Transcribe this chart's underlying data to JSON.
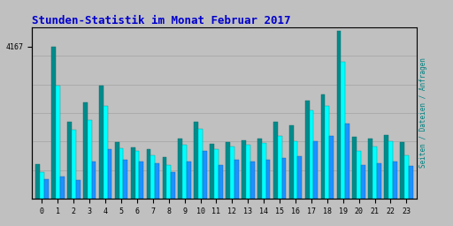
{
  "title": "Stunden-Statistik im Monat Februar 2017",
  "title_color": "#0000CC",
  "title_fontsize": 9,
  "ylabel_right": "Seiten / Dateien / Anfragen",
  "ylabel_right_color": "#008080",
  "background_color": "#C0C0C0",
  "plot_bg_color": "#C0C0C0",
  "bar_width": 0.27,
  "ylim_max": 4700,
  "ytick_label": "4167",
  "ytick_value": 4167,
  "hours": [
    0,
    1,
    2,
    3,
    4,
    5,
    6,
    7,
    8,
    9,
    10,
    11,
    12,
    13,
    14,
    15,
    16,
    17,
    18,
    19,
    20,
    21,
    22,
    23
  ],
  "seiten": [
    950,
    4167,
    2100,
    2650,
    3100,
    1550,
    1400,
    1350,
    1150,
    1650,
    2100,
    1500,
    1550,
    1600,
    1650,
    2100,
    2000,
    2700,
    2850,
    4600,
    1700,
    1650,
    1750,
    1550
  ],
  "dateien": [
    720,
    3100,
    1900,
    2150,
    2550,
    1380,
    1300,
    1180,
    920,
    1480,
    1920,
    1350,
    1440,
    1490,
    1540,
    1720,
    1580,
    2420,
    2550,
    3750,
    1320,
    1440,
    1580,
    1180
  ],
  "anfragen": [
    550,
    620,
    520,
    1020,
    1370,
    1080,
    1030,
    980,
    730,
    1020,
    1320,
    920,
    1080,
    1030,
    1080,
    1120,
    1170,
    1570,
    1720,
    2060,
    920,
    980,
    1020,
    910
  ],
  "color_seiten": "#008B8B",
  "color_dateien": "#00FFFF",
  "color_anfragen": "#1E90FF",
  "grid_color": "#A8A8A8",
  "border_color": "#000000",
  "n_gridlines": 6
}
